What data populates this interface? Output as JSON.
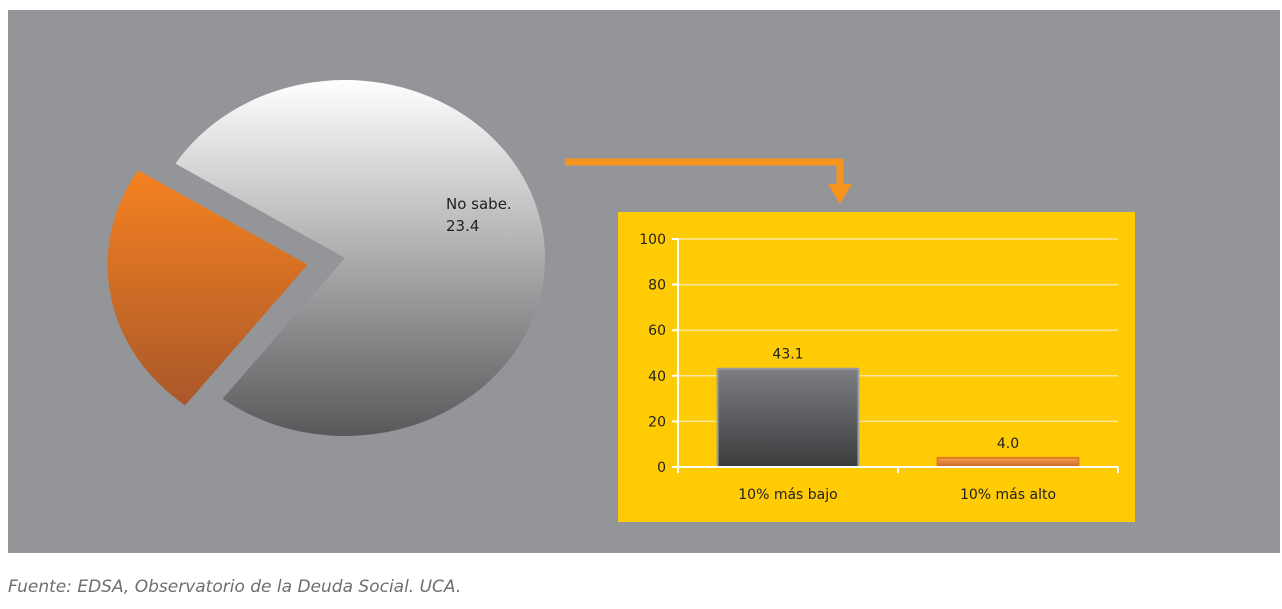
{
  "chart_data": [
    {
      "type": "pie",
      "slices": [
        {
          "label": "",
          "value": 76.6,
          "color_top": "#ffffff",
          "color_bottom": "#58595b"
        },
        {
          "label": "No sabe.",
          "value_label": "23.4",
          "value": 23.4,
          "color_top": "#f58220",
          "color_bottom": "#a9572a",
          "exploded": true
        }
      ]
    },
    {
      "type": "bar",
      "categories": [
        "10% más bajo",
        "10% más alto"
      ],
      "values": [
        43.1,
        4.0
      ],
      "value_labels": [
        "43.1",
        "4.0"
      ],
      "ylim": [
        0,
        100
      ],
      "yticks": [
        "0",
        "20",
        "40",
        "60",
        "80",
        "100"
      ],
      "grid": true,
      "bar_colors": [
        "#58595b",
        "#f58220"
      ],
      "background": "#ffcb05",
      "gridline_color": "#f6e6a0"
    }
  ],
  "connector_color": "#f7941d",
  "source": "Fuente: EDSA, Observatorio de la Deuda Social. UCA."
}
